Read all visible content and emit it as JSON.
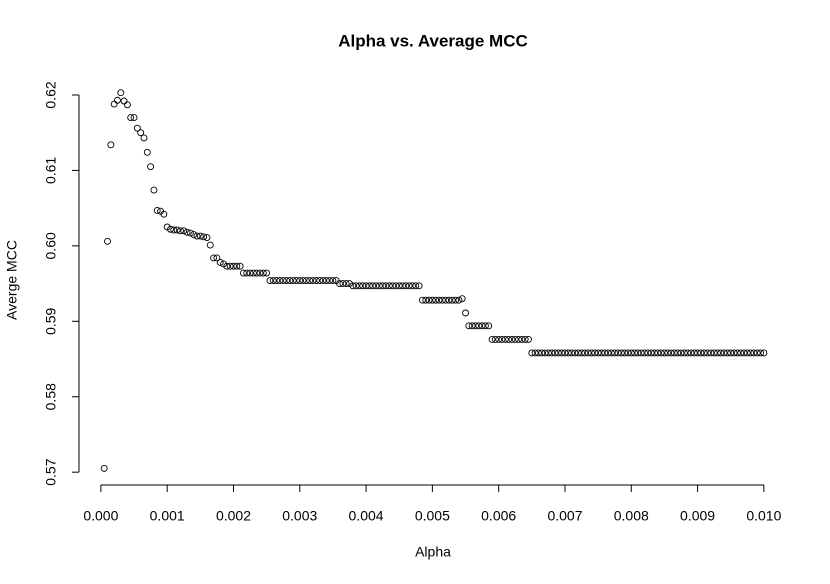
{
  "chart_data": {
    "type": "scatter",
    "title": "Alpha vs. Average MCC",
    "x_label": "Alpha",
    "y_label": "Averge MCC",
    "color": "#000000",
    "x": [
      5e-05,
      0.0001,
      0.00015,
      0.0002,
      0.00025,
      0.0003,
      0.00035,
      0.0004,
      0.00045,
      0.0005,
      0.00055,
      0.0006,
      0.00065,
      0.0007,
      0.00075,
      0.0008,
      0.00085,
      0.0009,
      0.00095,
      0.001,
      0.00105,
      0.0011,
      0.00115,
      0.0012,
      0.00125,
      0.0013,
      0.00135,
      0.0014,
      0.00145,
      0.0015,
      0.00155,
      0.0016,
      0.00165,
      0.0017,
      0.00175,
      0.0018,
      0.00185,
      0.0019,
      0.00195,
      0.002,
      0.00205,
      0.0021,
      0.00215,
      0.0022,
      0.00225,
      0.0023,
      0.00235,
      0.0024,
      0.00245,
      0.0025,
      0.00255,
      0.0026,
      0.00265,
      0.0027,
      0.00275,
      0.0028,
      0.00285,
      0.0029,
      0.00295,
      0.003,
      0.00305,
      0.0031,
      0.00315,
      0.0032,
      0.00325,
      0.0033,
      0.00335,
      0.0034,
      0.00345,
      0.0035,
      0.00355,
      0.0036,
      0.00365,
      0.0037,
      0.00375,
      0.0038,
      0.00385,
      0.0039,
      0.00395,
      0.004,
      0.00405,
      0.0041,
      0.00415,
      0.0042,
      0.00425,
      0.0043,
      0.00435,
      0.0044,
      0.00445,
      0.0045,
      0.00455,
      0.0046,
      0.00465,
      0.0047,
      0.00475,
      0.0048,
      0.00485,
      0.0049,
      0.00495,
      0.005,
      0.00505,
      0.0051,
      0.00515,
      0.0052,
      0.00525,
      0.0053,
      0.00535,
      0.0054,
      0.00545,
      0.0055,
      0.00555,
      0.0056,
      0.00565,
      0.0057,
      0.00575,
      0.0058,
      0.00585,
      0.0059,
      0.00595,
      0.006,
      0.00605,
      0.0061,
      0.00615,
      0.0062,
      0.00625,
      0.0063,
      0.00635,
      0.0064,
      0.00645,
      0.0065,
      0.00655,
      0.0066,
      0.00665,
      0.0067,
      0.00675,
      0.0068,
      0.00685,
      0.0069,
      0.00695,
      0.007,
      0.00705,
      0.0071,
      0.00715,
      0.0072,
      0.00725,
      0.0073,
      0.00735,
      0.0074,
      0.00745,
      0.0075,
      0.00755,
      0.0076,
      0.00765,
      0.0077,
      0.00775,
      0.0078,
      0.00785,
      0.0079,
      0.00795,
      0.008,
      0.00805,
      0.0081,
      0.00815,
      0.0082,
      0.00825,
      0.0083,
      0.00835,
      0.0084,
      0.00845,
      0.0085,
      0.00855,
      0.0086,
      0.00865,
      0.0087,
      0.00875,
      0.0088,
      0.00885,
      0.0089,
      0.00895,
      0.009,
      0.00905,
      0.0091,
      0.00915,
      0.0092,
      0.00925,
      0.0093,
      0.00935,
      0.0094,
      0.00945,
      0.0095,
      0.00955,
      0.0096,
      0.00965,
      0.0097,
      0.00975,
      0.0098,
      0.00985,
      0.0099,
      0.00995,
      0.01
    ],
    "values": [
      0.5705,
      0.6006,
      0.6134,
      0.6188,
      0.6193,
      0.6203,
      0.6192,
      0.6187,
      0.617,
      0.617,
      0.6156,
      0.615,
      0.6143,
      0.6124,
      0.6105,
      0.6074,
      0.6047,
      0.6046,
      0.6042,
      0.6025,
      0.6022,
      0.6021,
      0.6021,
      0.602,
      0.602,
      0.6018,
      0.6017,
      0.6015,
      0.6013,
      0.6013,
      0.6012,
      0.6011,
      0.6001,
      0.5984,
      0.5984,
      0.5978,
      0.5976,
      0.5973,
      0.5973,
      0.5973,
      0.5973,
      0.5973,
      0.5964,
      0.5964,
      0.5964,
      0.5964,
      0.5964,
      0.5964,
      0.5964,
      0.5964,
      0.5954,
      0.5954,
      0.5954,
      0.5954,
      0.5954,
      0.5954,
      0.5954,
      0.5954,
      0.5954,
      0.5954,
      0.5954,
      0.5954,
      0.5954,
      0.5954,
      0.5954,
      0.5954,
      0.5954,
      0.5954,
      0.5954,
      0.5954,
      0.5954,
      0.595,
      0.595,
      0.595,
      0.595,
      0.5947,
      0.5947,
      0.5947,
      0.5947,
      0.5947,
      0.5947,
      0.5947,
      0.5947,
      0.5947,
      0.5947,
      0.5947,
      0.5947,
      0.5947,
      0.5947,
      0.5947,
      0.5947,
      0.5947,
      0.5947,
      0.5947,
      0.5947,
      0.5947,
      0.5928,
      0.5928,
      0.5928,
      0.5928,
      0.5928,
      0.5928,
      0.5928,
      0.5928,
      0.5928,
      0.5928,
      0.5928,
      0.5928,
      0.593,
      0.5911,
      0.5894,
      0.5894,
      0.5894,
      0.5894,
      0.5894,
      0.5894,
      0.5894,
      0.5876,
      0.5876,
      0.5876,
      0.5876,
      0.5876,
      0.5876,
      0.5876,
      0.5876,
      0.5876,
      0.5876,
      0.5876,
      0.5876,
      0.5858,
      0.5858,
      0.5858,
      0.5858,
      0.5858,
      0.5858,
      0.5858,
      0.5858,
      0.5858,
      0.5858,
      0.5858,
      0.5858,
      0.5858,
      0.5858,
      0.5858,
      0.5858,
      0.5858,
      0.5858,
      0.5858,
      0.5858,
      0.5858,
      0.5858,
      0.5858,
      0.5858,
      0.5858,
      0.5858,
      0.5858,
      0.5858,
      0.5858,
      0.5858,
      0.5858,
      0.5858,
      0.5858,
      0.5858,
      0.5858,
      0.5858,
      0.5858,
      0.5858,
      0.5858,
      0.5858,
      0.5858,
      0.5858,
      0.5858,
      0.5858,
      0.5858,
      0.5858,
      0.5858,
      0.5858,
      0.5858,
      0.5858,
      0.5858,
      0.5858,
      0.5858,
      0.5858,
      0.5858,
      0.5858,
      0.5858,
      0.5858,
      0.5858,
      0.5858,
      0.5858,
      0.5858,
      0.5858,
      0.5858,
      0.5858,
      0.5858,
      0.5858,
      0.5858,
      0.5858,
      0.5858,
      0.5858
    ],
    "xlim": [
      -0.00033,
      0.010394
    ],
    "ylim": [
      0.5683,
      0.62225
    ],
    "xticks": [
      {
        "value": 0,
        "label": "0.000"
      },
      {
        "value": 0.001,
        "label": "0.001"
      },
      {
        "value": 0.002,
        "label": "0.002"
      },
      {
        "value": 0.003,
        "label": "0.003"
      },
      {
        "value": 0.004,
        "label": "0.004"
      },
      {
        "value": 0.005,
        "label": "0.005"
      },
      {
        "value": 0.006,
        "label": "0.006"
      },
      {
        "value": 0.007,
        "label": "0.007"
      },
      {
        "value": 0.008,
        "label": "0.008"
      },
      {
        "value": 0.009,
        "label": "0.009"
      },
      {
        "value": 0.01,
        "label": "0.010"
      }
    ],
    "yticks": [
      0.57,
      0.58,
      0.59,
      {
        "value": 0.6,
        "label": "0.60"
      },
      0.61,
      0.62
    ]
  }
}
